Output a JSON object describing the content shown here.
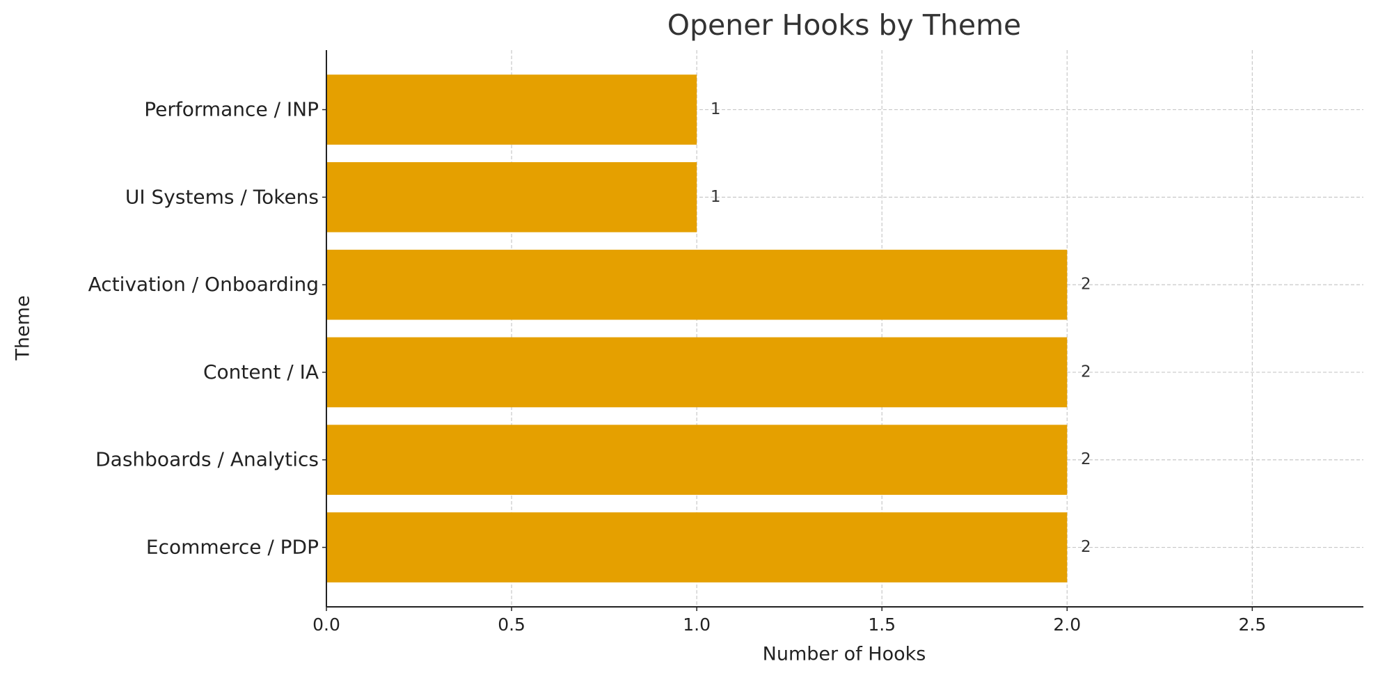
{
  "chart_data": {
    "type": "bar",
    "orientation": "horizontal",
    "title": "Opener Hooks by Theme",
    "x_label": "Number of Hooks",
    "y_label": "Theme",
    "categories": [
      "Performance / INP",
      "UI Systems / Tokens",
      "Activation / Onboarding",
      "Content / IA",
      "Dashboards / Analytics",
      "Ecommerce / PDP"
    ],
    "values": [
      1,
      1,
      2,
      2,
      2,
      2
    ],
    "color": "#e5a000",
    "xlim": [
      0,
      2.8
    ],
    "xticks": [
      {
        "value": 0,
        "label": "0.0"
      },
      0.5,
      {
        "value": 1,
        "label": "1.0"
      },
      1.5,
      {
        "value": 2,
        "label": "2.0"
      },
      2.5
    ],
    "grid": true
  }
}
